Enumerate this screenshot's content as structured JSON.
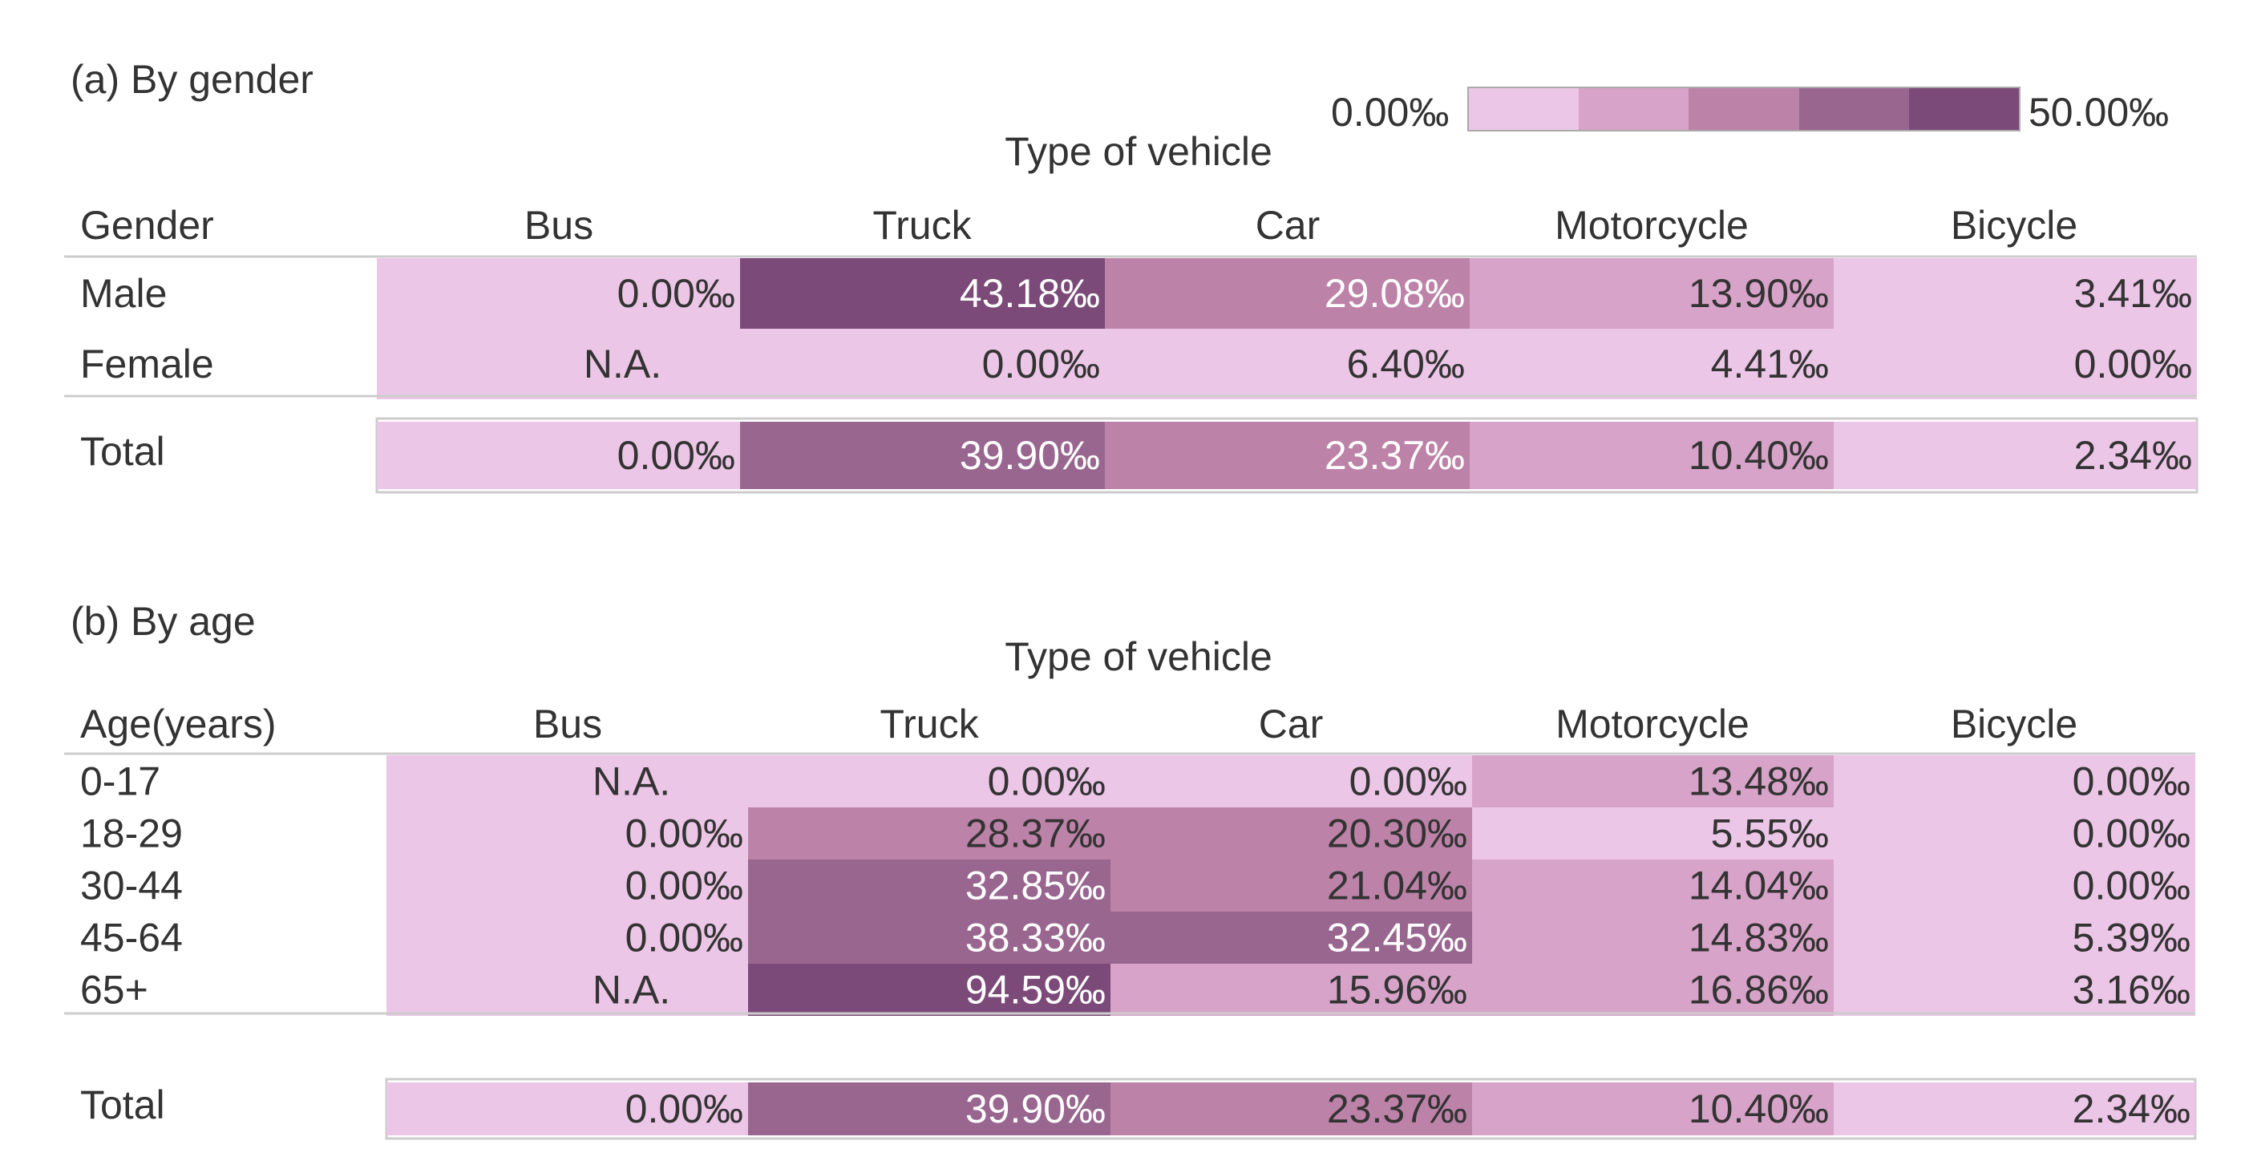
{
  "legend": {
    "min_label": "0.00‰",
    "max_label": "50.00‰",
    "min": 0,
    "max": 50,
    "colors": [
      "#ecc6e6",
      "#d7a3c8",
      "#bc82a8",
      "#996690",
      "#7b4a78"
    ]
  },
  "chart_data": [
    {
      "type": "heatmap",
      "title": "(a) By gender",
      "column_group_label": "Type of vehicle",
      "row_header": "Gender",
      "columns": [
        "Bus",
        "Truck",
        "Car",
        "Motorcycle",
        "Bicycle"
      ],
      "rows": [
        {
          "label": "Male",
          "values": [
            0.0,
            43.18,
            29.08,
            13.9,
            3.41
          ],
          "display": [
            "0.00‰",
            "43.18‰",
            "29.08‰",
            "13.90‰",
            "3.41‰"
          ]
        },
        {
          "label": "Female",
          "values": [
            null,
            0.0,
            6.4,
            4.41,
            0.0
          ],
          "display": [
            "N.A.",
            "0.00‰",
            "6.40‰",
            "4.41‰",
            "0.00‰"
          ]
        }
      ],
      "total": {
        "label": "Total",
        "values": [
          0.0,
          39.9,
          23.37,
          10.4,
          2.34
        ],
        "display": [
          "0.00‰",
          "39.90‰",
          "23.37‰",
          "10.40‰",
          "2.34‰"
        ]
      },
      "colors": [
        [
          "#ecc6e6",
          "#7b4a78",
          "#bc82a8",
          "#d7a3c8",
          "#ecc6e6"
        ],
        [
          "#ecc6e6",
          "#ecc6e6",
          "#ecc6e6",
          "#ecc6e6",
          "#ecc6e6"
        ]
      ],
      "total_colors": [
        "#ecc6e6",
        "#996690",
        "#bc82a8",
        "#d7a3c8",
        "#ecc6e6"
      ]
    },
    {
      "type": "heatmap",
      "title": "(b) By age",
      "column_group_label": "Type of vehicle",
      "row_header": "Age(years)",
      "columns": [
        "Bus",
        "Truck",
        "Car",
        "Motorcycle",
        "Bicycle"
      ],
      "rows": [
        {
          "label": "0-17",
          "values": [
            null,
            0.0,
            0.0,
            13.48,
            0.0
          ],
          "display": [
            "N.A.",
            "0.00‰",
            "0.00‰",
            "13.48‰",
            "0.00‰"
          ]
        },
        {
          "label": "18-29",
          "values": [
            0.0,
            28.37,
            20.3,
            5.55,
            0.0
          ],
          "display": [
            "0.00‰",
            "28.37‰",
            "20.30‰",
            "5.55‰",
            "0.00‰"
          ]
        },
        {
          "label": "30-44",
          "values": [
            0.0,
            32.85,
            21.04,
            14.04,
            0.0
          ],
          "display": [
            "0.00‰",
            "32.85‰",
            "21.04‰",
            "14.04‰",
            "0.00‰"
          ]
        },
        {
          "label": "45-64",
          "values": [
            0.0,
            38.33,
            32.45,
            14.83,
            5.39
          ],
          "display": [
            "0.00‰",
            "38.33‰",
            "32.45‰",
            "14.83‰",
            "5.39‰"
          ]
        },
        {
          "label": "65+",
          "values": [
            null,
            94.59,
            15.96,
            16.86,
            3.16
          ],
          "display": [
            "N.A.",
            "94.59‰",
            "15.96‰",
            "16.86‰",
            "3.16‰"
          ]
        }
      ],
      "total": {
        "label": "Total",
        "values": [
          0.0,
          39.9,
          23.37,
          10.4,
          2.34
        ],
        "display": [
          "0.00‰",
          "39.90‰",
          "23.37‰",
          "10.40‰",
          "2.34‰"
        ]
      },
      "colors": [
        [
          "#ecc6e6",
          "#ecc6e6",
          "#ecc6e6",
          "#d7a3c8",
          "#ecc6e6"
        ],
        [
          "#ecc6e6",
          "#bc82a8",
          "#bc82a8",
          "#ecc6e6",
          "#ecc6e6"
        ],
        [
          "#ecc6e6",
          "#996690",
          "#bc82a8",
          "#d7a3c8",
          "#ecc6e6"
        ],
        [
          "#ecc6e6",
          "#996690",
          "#996690",
          "#d7a3c8",
          "#ecc6e6"
        ],
        [
          "#ecc6e6",
          "#7b4a78",
          "#d7a3c8",
          "#d7a3c8",
          "#ecc6e6"
        ]
      ],
      "total_colors": [
        "#ecc6e6",
        "#996690",
        "#bc82a8",
        "#d7a3c8",
        "#ecc6e6"
      ]
    }
  ]
}
